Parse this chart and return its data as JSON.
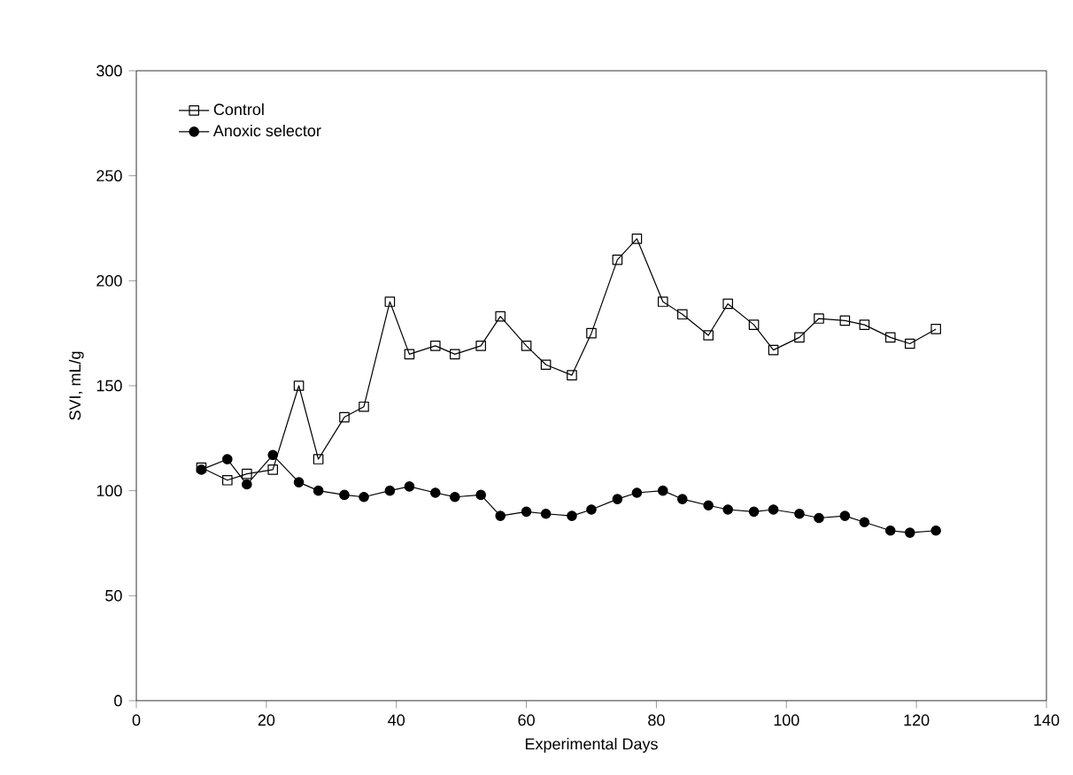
{
  "chart_data": {
    "type": "line",
    "xlabel": "Experimental Days",
    "ylabel": "SVI, mL/g",
    "xlim": [
      0,
      140
    ],
    "ylim": [
      0,
      300
    ],
    "xticks": [
      0,
      20,
      40,
      60,
      80,
      100,
      120,
      140
    ],
    "yticks": [
      0,
      50,
      100,
      150,
      200,
      250,
      300
    ],
    "legend": "top left",
    "grid": false,
    "x": [
      10,
      14,
      17,
      21,
      25,
      28,
      32,
      35,
      39,
      42,
      46,
      49,
      53,
      56,
      60,
      63,
      67,
      70,
      74,
      77,
      81,
      84,
      88,
      91,
      95,
      98,
      102,
      105,
      109,
      112,
      116,
      119,
      123
    ],
    "series": [
      {
        "name": "Control",
        "color": "#000000",
        "marker": "square",
        "values": [
          111,
          105,
          108,
          110,
          150,
          115,
          135,
          140,
          190,
          165,
          169,
          165,
          169,
          183,
          169,
          160,
          155,
          175,
          210,
          220,
          190,
          184,
          174,
          189,
          179,
          167,
          173,
          182,
          181,
          179,
          173,
          170,
          177
        ]
      },
      {
        "name": "Anoxic selector",
        "color": "#000000",
        "marker": "circle",
        "values": [
          110,
          115,
          103,
          117,
          104,
          100,
          98,
          97,
          100,
          102,
          99,
          97,
          98,
          88,
          90,
          89,
          88,
          91,
          96,
          99,
          100,
          96,
          93,
          91,
          90,
          91,
          89,
          87,
          88,
          85,
          81,
          80,
          81
        ]
      }
    ]
  }
}
